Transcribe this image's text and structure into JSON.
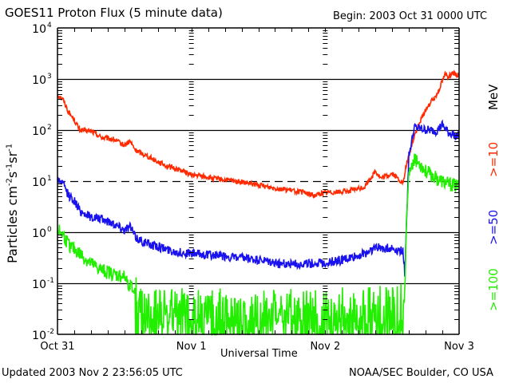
{
  "header": {
    "title": "GOES11 Proton Flux (5 minute data)",
    "begin": "Begin: 2003 Oct 31 0000 UTC"
  },
  "footer": {
    "updated": "Updated 2003 Nov  2 23:56:05 UTC",
    "credit": "NOAA/SEC Boulder, CO USA"
  },
  "chart_data": {
    "type": "line",
    "title": "GOES11 Proton Flux (5 minute data)",
    "xlabel": "Universal Time",
    "ylabel": "Particles cm⁻²s⁻¹sr⁻¹",
    "ylabel_parts": {
      "main": "Particles cm",
      "e1": "-2",
      "s": "s",
      "e2": "-1",
      "sr": "sr",
      "e3": "-1"
    },
    "yscale": "log",
    "ylim": [
      0.01,
      10000
    ],
    "xlim_hours": [
      0,
      72
    ],
    "y_ticks": [
      {
        "base": "10",
        "exp": "4",
        "value": 10000
      },
      {
        "base": "10",
        "exp": "3",
        "value": 1000
      },
      {
        "base": "10",
        "exp": "2",
        "value": 100
      },
      {
        "base": "10",
        "exp": "1",
        "value": 10
      },
      {
        "base": "10",
        "exp": "0",
        "value": 1
      },
      {
        "base": "10",
        "exp": "-1",
        "value": 0.1
      },
      {
        "base": "10",
        "exp": "-2",
        "value": 0.01
      }
    ],
    "x_ticks": [
      {
        "label": "Oct 31",
        "hour": 0
      },
      {
        "label": "Nov 1",
        "hour": 24
      },
      {
        "label": "Nov 2",
        "hour": 48
      },
      {
        "label": "Nov 3",
        "hour": 72
      }
    ],
    "reference_lines": [
      {
        "value": 1000,
        "style": "solid"
      },
      {
        "value": 100,
        "style": "solid"
      },
      {
        "value": 10,
        "style": "dashed"
      },
      {
        "value": 1,
        "style": "solid"
      },
      {
        "value": 0.1,
        "style": "solid"
      }
    ],
    "legend_unit": "MeV",
    "series": [
      {
        "name": ">=10",
        "color": "#ff2a00",
        "noise": 0.05,
        "points_hour_log10": [
          [
            0,
            2.7
          ],
          [
            1,
            2.6
          ],
          [
            2,
            2.35
          ],
          [
            3,
            2.2
          ],
          [
            4,
            2.0
          ],
          [
            6,
            1.98
          ],
          [
            8,
            1.85
          ],
          [
            10,
            1.82
          ],
          [
            12,
            1.7
          ],
          [
            13,
            1.78
          ],
          [
            14,
            1.6
          ],
          [
            16,
            1.5
          ],
          [
            18,
            1.38
          ],
          [
            20,
            1.28
          ],
          [
            22,
            1.22
          ],
          [
            24,
            1.12
          ],
          [
            26,
            1.1
          ],
          [
            28,
            1.05
          ],
          [
            32,
            1.0
          ],
          [
            36,
            0.92
          ],
          [
            40,
            0.85
          ],
          [
            44,
            0.78
          ],
          [
            46,
            0.72
          ],
          [
            48,
            0.78
          ],
          [
            52,
            0.8
          ],
          [
            55,
            0.88
          ],
          [
            57,
            1.2
          ],
          [
            58,
            1.05
          ],
          [
            60,
            1.15
          ],
          [
            62,
            0.95
          ],
          [
            62.5,
            1.3
          ],
          [
            63,
            1.5
          ],
          [
            64,
            1.9
          ],
          [
            66,
            2.4
          ],
          [
            68,
            2.7
          ],
          [
            69.5,
            3.1
          ],
          [
            70,
            3.05
          ],
          [
            71,
            3.1
          ],
          [
            72,
            3.05
          ]
        ]
      },
      {
        "name": ">=50",
        "color": "#1a12ee",
        "noise": 0.09,
        "points_hour_log10": [
          [
            0,
            1.05
          ],
          [
            1,
            0.95
          ],
          [
            2,
            0.72
          ],
          [
            3,
            0.62
          ],
          [
            4,
            0.42
          ],
          [
            6,
            0.3
          ],
          [
            8,
            0.25
          ],
          [
            10,
            0.18
          ],
          [
            12,
            0.05
          ],
          [
            13,
            0.12
          ],
          [
            14,
            -0.1
          ],
          [
            16,
            -0.22
          ],
          [
            18,
            -0.28
          ],
          [
            20,
            -0.35
          ],
          [
            22,
            -0.4
          ],
          [
            24,
            -0.42
          ],
          [
            28,
            -0.45
          ],
          [
            32,
            -0.5
          ],
          [
            36,
            -0.55
          ],
          [
            40,
            -0.62
          ],
          [
            44,
            -0.62
          ],
          [
            48,
            -0.6
          ],
          [
            52,
            -0.52
          ],
          [
            55,
            -0.42
          ],
          [
            57,
            -0.3
          ],
          [
            60,
            -0.32
          ],
          [
            62,
            -0.38
          ],
          [
            62.3,
            -0.9
          ],
          [
            62.5,
            0.0
          ],
          [
            63,
            1.5
          ],
          [
            64,
            2.05
          ],
          [
            66,
            2.0
          ],
          [
            68,
            1.98
          ],
          [
            69,
            2.1
          ],
          [
            70,
            1.95
          ],
          [
            72,
            1.88
          ]
        ]
      },
      {
        "name": ">=100",
        "color": "#22ee00",
        "noise": 0.14,
        "floor_log10": -2,
        "points_hour_log10": [
          [
            0,
            0.05
          ],
          [
            1,
            -0.05
          ],
          [
            2,
            -0.25
          ],
          [
            4,
            -0.42
          ],
          [
            6,
            -0.62
          ],
          [
            8,
            -0.75
          ],
          [
            10,
            -0.82
          ],
          [
            12,
            -0.88
          ],
          [
            13,
            -1.05
          ],
          [
            14,
            -1.2
          ],
          [
            15,
            -1.6
          ],
          [
            17,
            -1.55
          ],
          [
            20,
            -1.55
          ],
          [
            24,
            -1.6
          ],
          [
            30,
            -1.6
          ],
          [
            36,
            -1.62
          ],
          [
            42,
            -1.6
          ],
          [
            48,
            -1.6
          ],
          [
            54,
            -1.55
          ],
          [
            60,
            -1.5
          ],
          [
            62,
            -1.45
          ],
          [
            62.3,
            -1.2
          ],
          [
            62.5,
            0.0
          ],
          [
            63,
            1.1
          ],
          [
            64,
            1.4
          ],
          [
            65,
            1.35
          ],
          [
            66,
            1.2
          ],
          [
            68,
            1.05
          ],
          [
            70,
            0.95
          ],
          [
            72,
            0.9
          ]
        ]
      }
    ]
  }
}
